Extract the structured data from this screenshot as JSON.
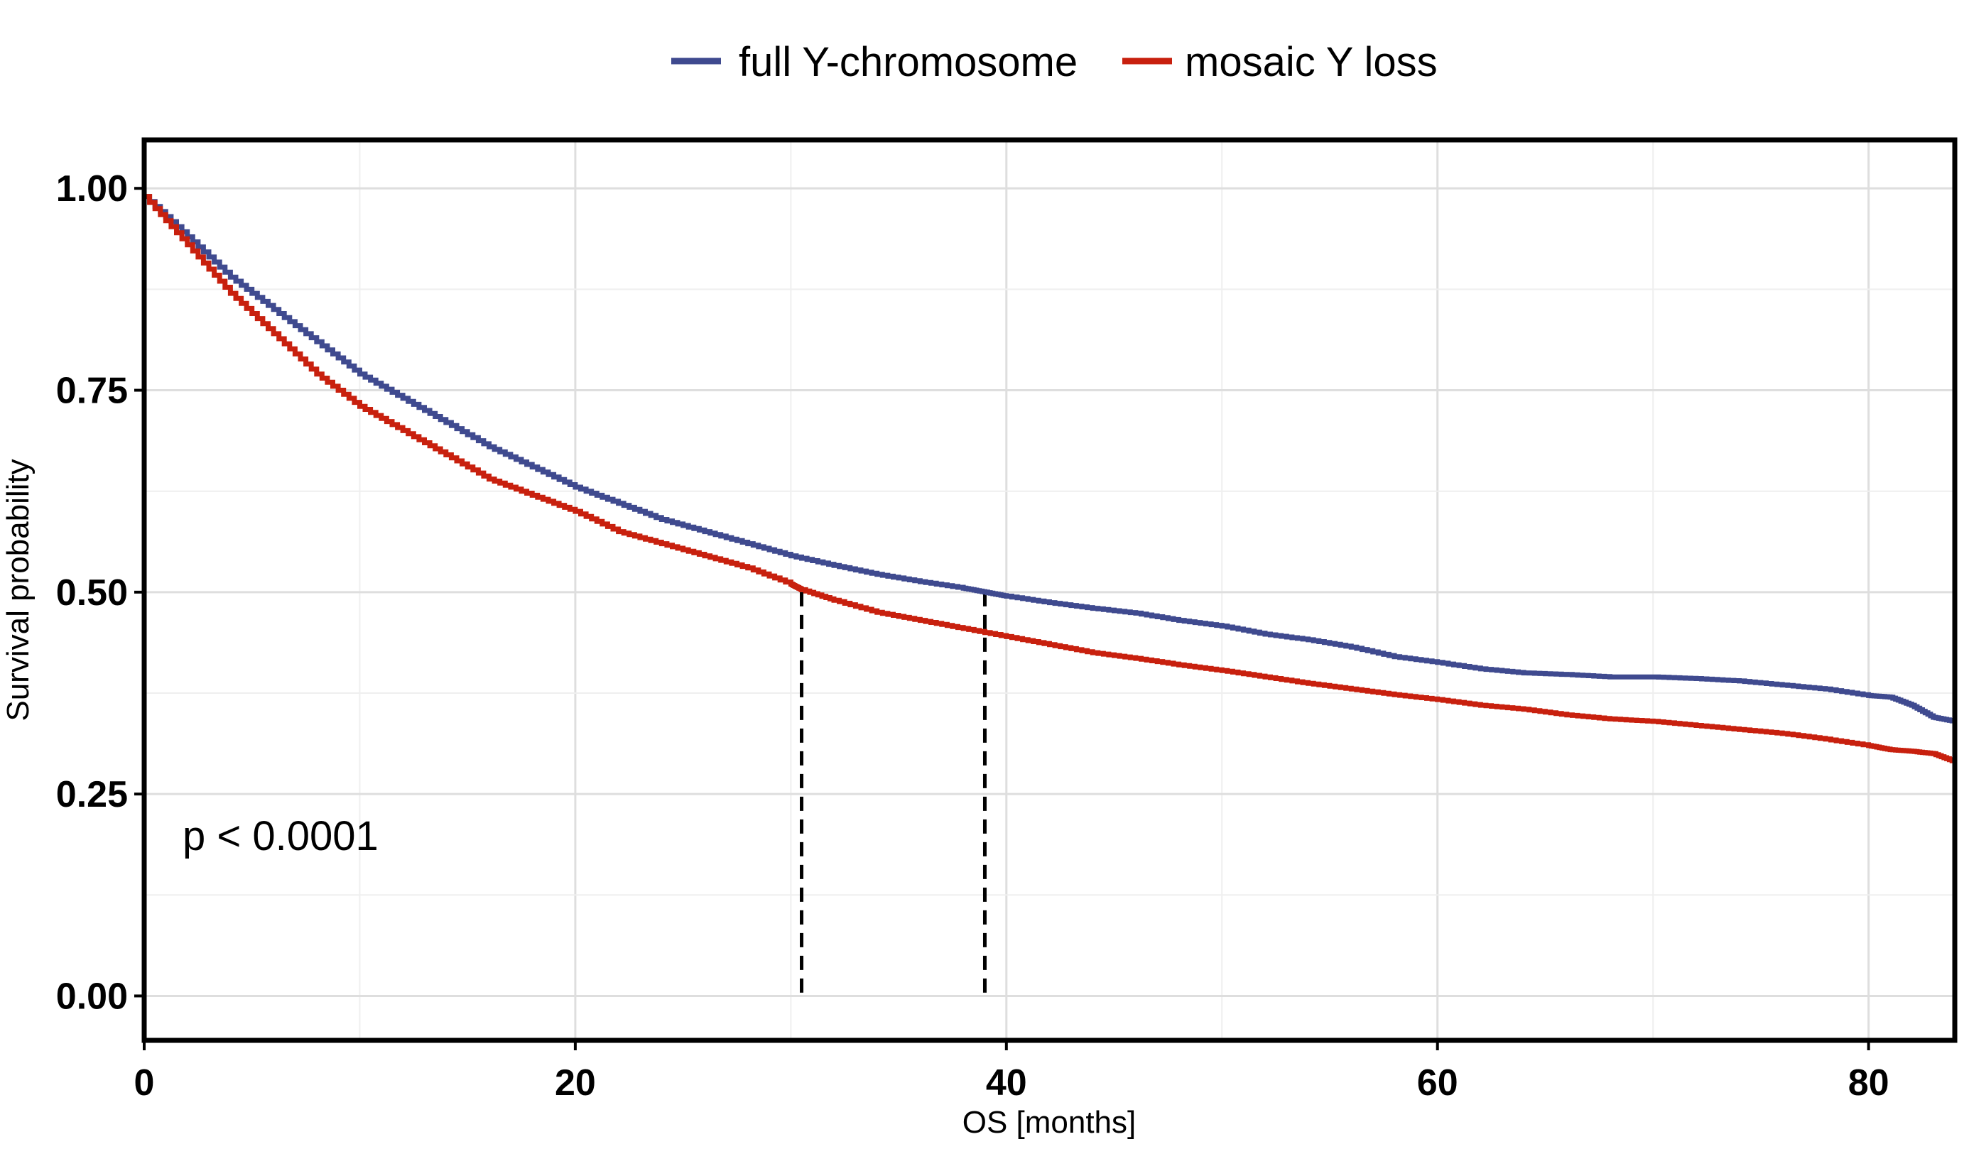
{
  "chart_data": {
    "type": "line",
    "subtype": "kaplan-meier",
    "xlabel": "OS [months]",
    "ylabel": "Survival probability",
    "xlim": [
      0,
      84
    ],
    "ylim": [
      -0.055,
      1.06
    ],
    "x_ticks": [
      0,
      20,
      40,
      60,
      80
    ],
    "x_tick_labels": [
      "0",
      "20",
      "40",
      "60",
      "80"
    ],
    "y_ticks": [
      0,
      0.25,
      0.5,
      0.75,
      1.0
    ],
    "y_tick_labels": [
      "0.00",
      "0.25",
      "0.50",
      "0.75",
      "1.00"
    ],
    "grid": true,
    "legend_position": "top",
    "annotation": "p < 0.0001",
    "series": [
      {
        "name": "full Y-chromosome",
        "color": "#3F4A8F",
        "x": [
          0,
          2,
          4,
          6,
          8,
          10,
          12,
          14,
          16,
          18,
          20,
          22,
          24,
          26,
          28,
          30,
          32,
          34,
          36,
          38,
          39,
          40,
          42,
          44,
          46,
          48,
          50,
          52,
          54,
          56,
          58,
          60,
          62,
          64,
          66,
          68,
          70,
          72,
          74,
          76,
          78,
          80,
          81,
          82,
          83,
          84
        ],
        "y": [
          0.99,
          0.94,
          0.89,
          0.85,
          0.81,
          0.77,
          0.74,
          0.71,
          0.68,
          0.655,
          0.63,
          0.61,
          0.59,
          0.575,
          0.56,
          0.545,
          0.533,
          0.522,
          0.513,
          0.505,
          0.5,
          0.495,
          0.487,
          0.48,
          0.474,
          0.465,
          0.458,
          0.448,
          0.441,
          0.432,
          0.42,
          0.413,
          0.405,
          0.4,
          0.398,
          0.395,
          0.395,
          0.393,
          0.39,
          0.385,
          0.38,
          0.372,
          0.37,
          0.36,
          0.345,
          0.34
        ]
      },
      {
        "name": "mosaic Y loss",
        "color": "#C8200E",
        "x": [
          0,
          2,
          4,
          6,
          8,
          10,
          12,
          14,
          16,
          18,
          20,
          22,
          24,
          26,
          28,
          30,
          30.5,
          32,
          34,
          36,
          38,
          40,
          42,
          44,
          46,
          48,
          50,
          52,
          54,
          56,
          58,
          60,
          62,
          64,
          66,
          68,
          70,
          72,
          74,
          76,
          78,
          80,
          81,
          82,
          83,
          84
        ],
        "y": [
          0.99,
          0.93,
          0.87,
          0.82,
          0.77,
          0.73,
          0.7,
          0.67,
          0.64,
          0.62,
          0.6,
          0.575,
          0.56,
          0.545,
          0.53,
          0.51,
          0.503,
          0.49,
          0.475,
          0.465,
          0.455,
          0.445,
          0.435,
          0.425,
          0.418,
          0.41,
          0.403,
          0.395,
          0.387,
          0.38,
          0.373,
          0.367,
          0.36,
          0.355,
          0.348,
          0.343,
          0.34,
          0.335,
          0.33,
          0.325,
          0.318,
          0.31,
          0.305,
          0.303,
          0.3,
          0.29
        ]
      }
    ],
    "median_lines": [
      {
        "series": "mosaic Y loss",
        "x": 30.5,
        "y": 0.5
      },
      {
        "series": "full Y-chromosome",
        "x": 39.0,
        "y": 0.5
      }
    ]
  }
}
